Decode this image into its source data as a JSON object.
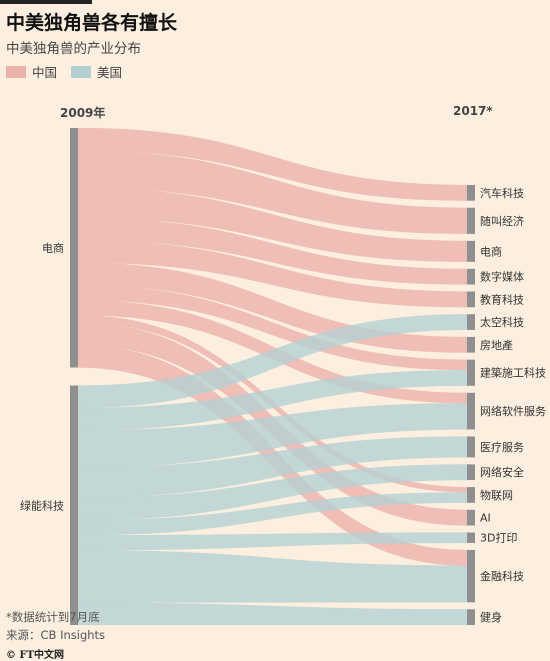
{
  "header": {
    "title": "中美独角兽各有擅长",
    "subtitle": "中美独角兽的产业分布"
  },
  "legend": [
    {
      "label": "中国",
      "color": "#eab0aa"
    },
    {
      "label": "美国",
      "color": "#b2cfd3"
    }
  ],
  "chart_data": {
    "type": "sankey",
    "x_labels": {
      "left": "2009年",
      "right": "2017*"
    },
    "source_categories": [
      "电商",
      "绿能科技"
    ],
    "target_categories": [
      "汽车科技",
      "随叫经济",
      "电商",
      "数字媒体",
      "教育科技",
      "太空科技",
      "房地產",
      "建築施工科技",
      "网络软件服务",
      "医疗服务",
      "网络安全",
      "物联网",
      "AI",
      "3D打印",
      "金融科技",
      "健身"
    ],
    "flows": [
      {
        "source": "电商",
        "target": "汽车科技",
        "country": "中国",
        "value": 3
      },
      {
        "source": "电商",
        "target": "随叫经济",
        "country": "中国",
        "value": 5
      },
      {
        "source": "电商",
        "target": "电商",
        "country": "中国",
        "value": 4
      },
      {
        "source": "电商",
        "target": "数字媒体",
        "country": "中国",
        "value": 3
      },
      {
        "source": "电商",
        "target": "教育科技",
        "country": "中国",
        "value": 3
      },
      {
        "source": "电商",
        "target": "房地產",
        "country": "中国",
        "value": 3
      },
      {
        "source": "电商",
        "target": "建築施工科技",
        "country": "中国",
        "value": 2
      },
      {
        "source": "电商",
        "target": "网络软件服务",
        "country": "中国",
        "value": 2
      },
      {
        "source": "电商",
        "target": "物联网",
        "country": "中国",
        "value": 1
      },
      {
        "source": "电商",
        "target": "AI",
        "country": "中国",
        "value": 3
      },
      {
        "source": "电商",
        "target": "金融科技",
        "country": "中国",
        "value": 3
      },
      {
        "source": "绿能科技",
        "target": "太空科技",
        "country": "美国",
        "value": 3
      },
      {
        "source": "绿能科技",
        "target": "建築施工科技",
        "country": "美国",
        "value": 3
      },
      {
        "source": "绿能科技",
        "target": "网络软件服务",
        "country": "美国",
        "value": 5
      },
      {
        "source": "绿能科技",
        "target": "医疗服务",
        "country": "美国",
        "value": 4
      },
      {
        "source": "绿能科技",
        "target": "网络安全",
        "country": "美国",
        "value": 3
      },
      {
        "source": "绿能科技",
        "target": "物联网",
        "country": "美国",
        "value": 2
      },
      {
        "source": "绿能科技",
        "target": "3D打印",
        "country": "美国",
        "value": 2
      },
      {
        "source": "绿能科技",
        "target": "金融科技",
        "country": "美国",
        "value": 7
      },
      {
        "source": "绿能科技",
        "target": "健身",
        "country": "美国",
        "value": 3
      }
    ]
  },
  "footer": {
    "note": "*数据统计到7月底",
    "source": "来源：CB Insights",
    "logo": "© FT中文网"
  }
}
